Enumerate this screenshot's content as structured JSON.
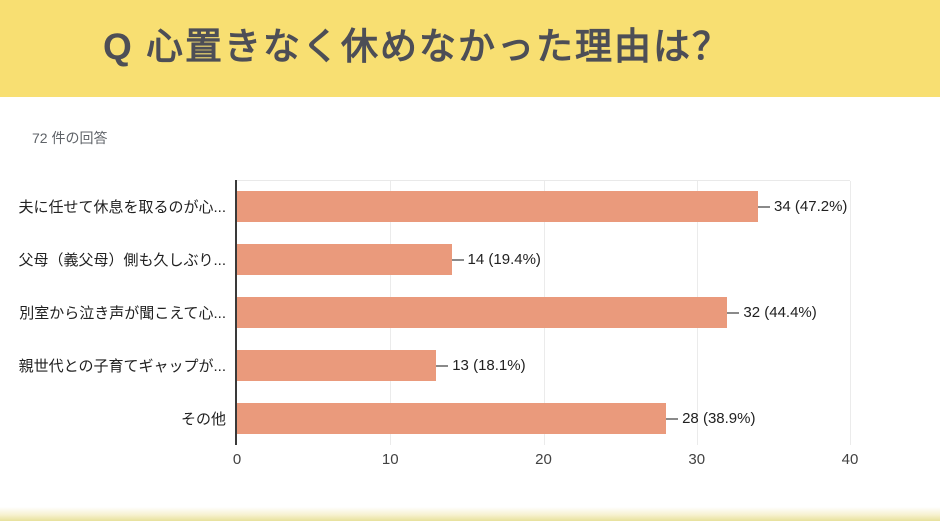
{
  "header": {
    "title": "Q 心置きなく休めなかった理由は？",
    "background_color": "#F8DF72",
    "title_color": "#4D4E56"
  },
  "response_count": "72 件の回答",
  "chart_data": {
    "type": "bar",
    "orientation": "horizontal",
    "title": "",
    "xlabel": "",
    "ylabel": "",
    "total_responses": 72,
    "categories": [
      "夫に任せて休息を取るのが心...",
      "父母（義父母）側も久しぶり...",
      "別室から泣き声が聞こえて心...",
      "親世代との子育てギャップが...",
      "その他"
    ],
    "values": [
      34,
      14,
      32,
      13,
      28
    ],
    "percentages": [
      47.2,
      19.4,
      44.4,
      18.1,
      38.9
    ],
    "value_labels": [
      "34 (47.2%)",
      "14 (19.4%)",
      "32 (44.4%)",
      "13 (18.1%)",
      "28 (38.9%)"
    ],
    "xlim": [
      0,
      40
    ],
    "x_ticks": [
      0,
      10,
      20,
      30,
      40
    ],
    "grid": true,
    "bar_color": "#EA9A7C",
    "legend_position": "none"
  }
}
